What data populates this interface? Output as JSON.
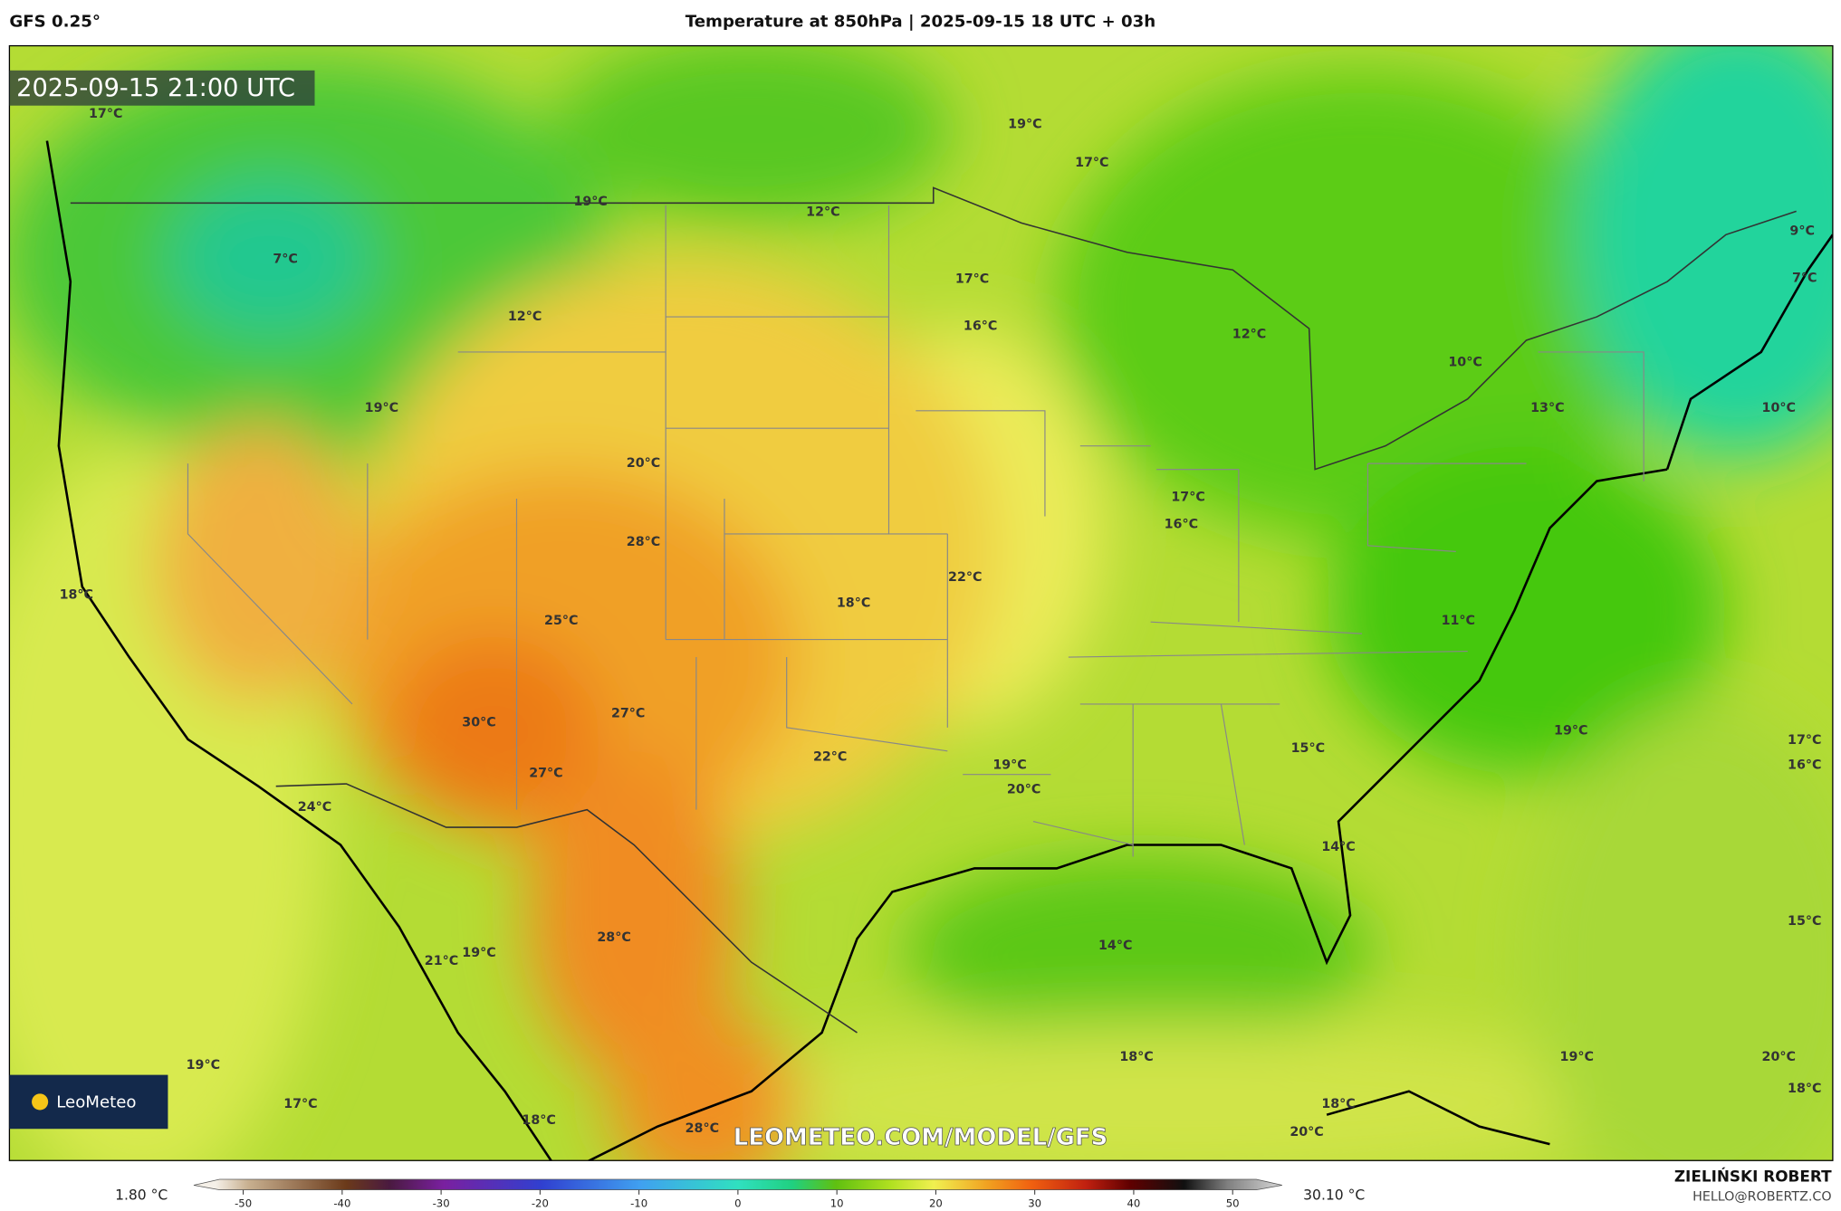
{
  "header": {
    "model": "GFS 0.25°",
    "title": "Temperature at 850hPa | 2025-09-15 18 UTC + 03h"
  },
  "map": {
    "timestamp": "2025-09-15 21:00 UTC",
    "watermark": "LEOMETEO.COM/MODEL/GFS",
    "logo": "LeoMeteo",
    "labels": [
      "17°C",
      "19°C",
      "17°C",
      "19°C",
      "12°C",
      "7°C",
      "17°C",
      "16°C",
      "12°C",
      "12°C",
      "10°C",
      "19°C",
      "13°C",
      "10°C",
      "9°C",
      "7°C",
      "20°C",
      "17°C",
      "16°C",
      "28°C",
      "22°C",
      "18°C",
      "18°C",
      "25°C",
      "11°C",
      "27°C",
      "30°C",
      "19°C",
      "17°C",
      "16°C",
      "15°C",
      "22°C",
      "19°C",
      "27°C",
      "20°C",
      "24°C",
      "14°C",
      "15°C",
      "28°C",
      "14°C",
      "21°C",
      "19°C",
      "18°C",
      "19°C",
      "20°C",
      "19°C",
      "18°C",
      "17°C",
      "18°C",
      "18°C",
      "28°C",
      "20°C"
    ]
  },
  "colorbar": {
    "min_label": "1.80 °C",
    "max_label": "30.10 °C",
    "range": [
      -55,
      55
    ],
    "ticks": [
      -50,
      -40,
      -30,
      -20,
      -10,
      0,
      10,
      20,
      30,
      40,
      50
    ]
  },
  "footer": {
    "author": "ZIELIŃSKI ROBERT",
    "contact": "HELLO@ROBERTZ.CO"
  }
}
